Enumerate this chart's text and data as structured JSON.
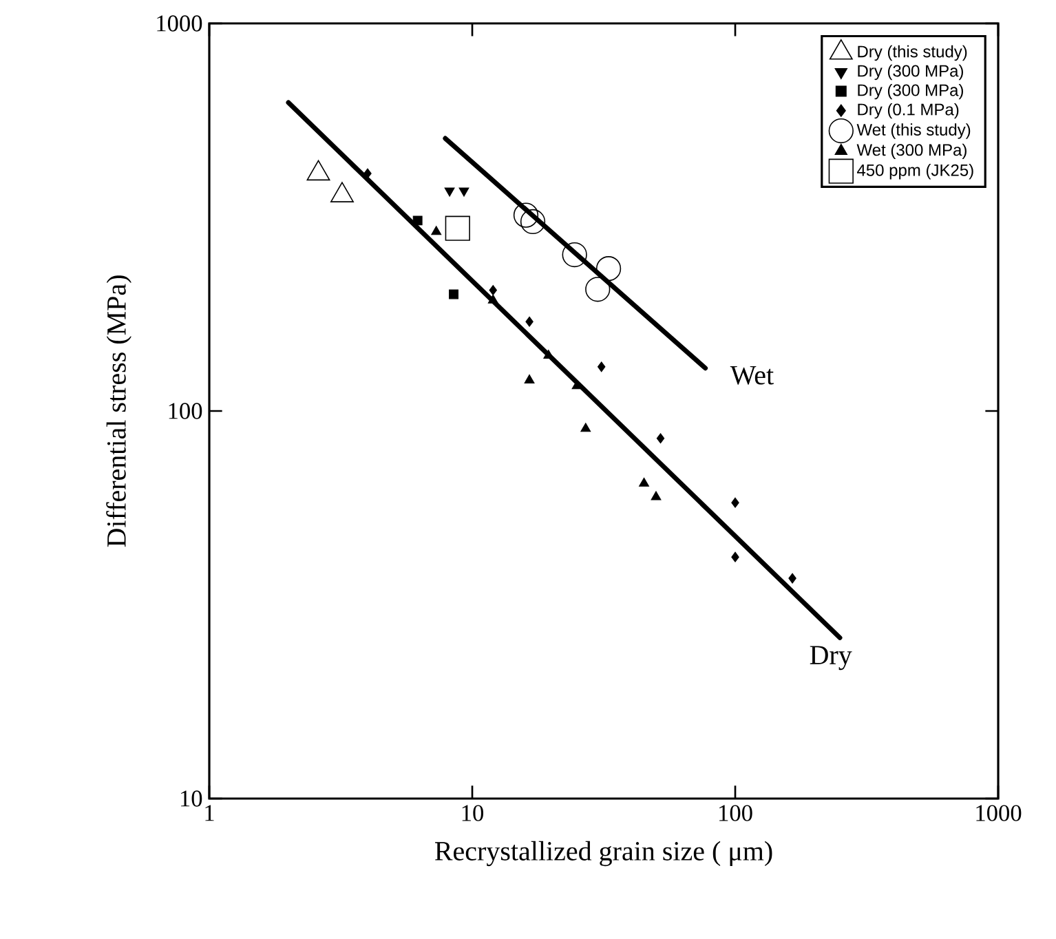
{
  "chart_data": {
    "type": "scatter",
    "xlabel": "Recrystallized grain size ( μm)",
    "ylabel": "Differential stress (MPa)",
    "log": "xy",
    "xlim": [
      1,
      1000
    ],
    "ylim": [
      10,
      1000
    ],
    "xticks": [
      1,
      10,
      100,
      1000
    ],
    "yticks": [
      10,
      100,
      1000
    ],
    "legend": "top right",
    "grid": false,
    "series": [
      {
        "name": "Dry  (this  study)",
        "color": "#000000",
        "marker": "triangle-open",
        "x": [
          2.6,
          3.2
        ],
        "values": [
          410,
          360
        ]
      },
      {
        "name": "Dry  (300 MPa)",
        "color": "#000000",
        "marker": "triangle-down",
        "x": [
          8.2,
          9.3
        ],
        "values": [
          370,
          370
        ]
      },
      {
        "name": "Dry (300 MPa)",
        "color": "#000000",
        "marker": "square",
        "x": [
          6.2,
          8.5
        ],
        "values": [
          310,
          200
        ]
      },
      {
        "name": "Dry (0.1 MPa)",
        "color": "#000000",
        "marker": "diamond",
        "x": [
          4,
          12,
          16.5,
          31,
          52,
          100,
          100,
          165
        ],
        "values": [
          410,
          205,
          170,
          130,
          85,
          58,
          42,
          37
        ]
      },
      {
        "name": "Wet  (this  study)",
        "color": "#000000",
        "marker": "circle-open",
        "x": [
          16,
          17,
          24.5,
          33,
          30
        ],
        "values": [
          320,
          308,
          253,
          233,
          206
        ]
      },
      {
        "name": "Wet (300 MPa)",
        "color": "#000000",
        "marker": "triangle",
        "x": [
          7.3,
          12,
          16.5,
          19.5,
          25,
          27,
          45,
          50
        ],
        "values": [
          290,
          193,
          120,
          139,
          116,
          90,
          65,
          60
        ]
      },
      {
        "name": "450  ppm  (JK25)",
        "color": "#000000",
        "marker": "square-open",
        "x": [
          8.8
        ],
        "values": [
          296
        ]
      },
      {
        "type": "line",
        "color": "#000000",
        "marker": "none",
        "x": [
          2,
          250
        ],
        "values": [
          625,
          26
        ]
      },
      {
        "type": "line",
        "color": "#000000",
        "marker": "none",
        "x": [
          7.9,
          77
        ],
        "values": [
          505,
          129
        ]
      }
    ],
    "annotations": [
      {
        "text": "Wet",
        "x": 77,
        "y": 129
      },
      {
        "text": "Dry",
        "x": 250,
        "y": 26
      }
    ]
  }
}
